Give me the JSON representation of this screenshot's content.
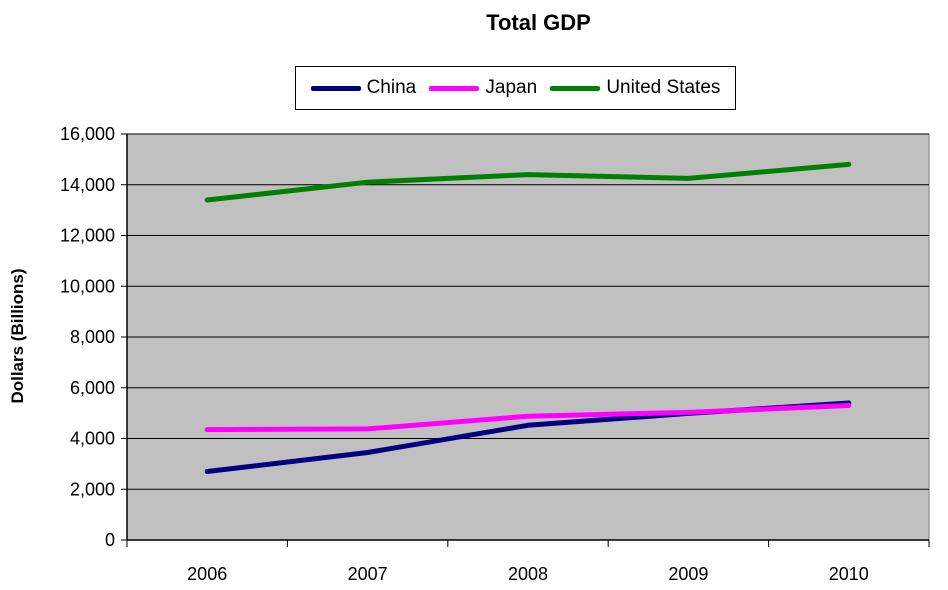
{
  "chart_data": {
    "type": "line",
    "title": "Total GDP",
    "ylabel": "Dollars (Billions)",
    "xlabel": "",
    "categories": [
      "2006",
      "2007",
      "2008",
      "2009",
      "2010"
    ],
    "ylim": [
      0,
      16000
    ],
    "yticks": [
      0,
      2000,
      4000,
      6000,
      8000,
      10000,
      12000,
      14000,
      16000
    ],
    "ytick_labels": [
      "0",
      "2,000",
      "4,000",
      "6,000",
      "8,000",
      "10,000",
      "12,000",
      "14,000",
      "16,000"
    ],
    "grid": "horizontal",
    "plot_background": "#c0c0c0",
    "legend_position": "top",
    "series": [
      {
        "name": "China",
        "color": "#000080",
        "values": [
          2700,
          3450,
          4520,
          4990,
          5400
        ]
      },
      {
        "name": "Japan",
        "color": "#ff00ff",
        "values": [
          4350,
          4380,
          4880,
          5030,
          5300
        ]
      },
      {
        "name": "United States",
        "color": "#008000",
        "values": [
          13400,
          14100,
          14400,
          14250,
          14800
        ]
      }
    ]
  }
}
